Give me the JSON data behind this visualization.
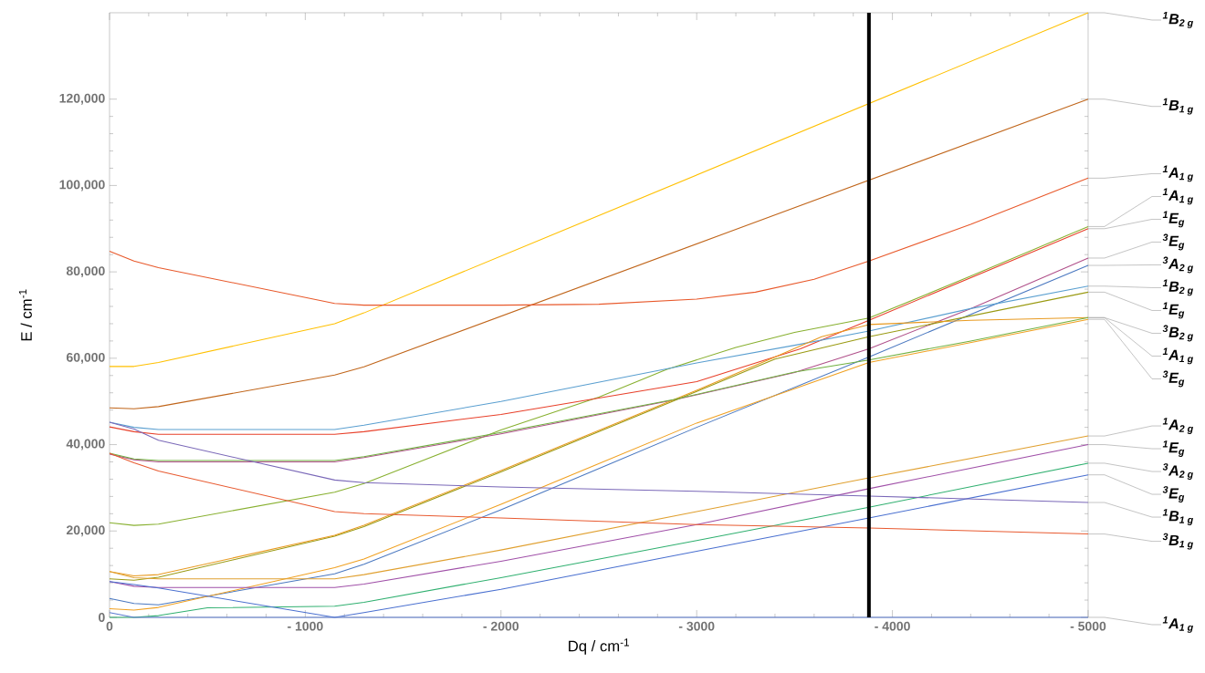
{
  "chart_data": {
    "type": "line",
    "xlabel": "Dq / cm$^{-1}$",
    "ylabel": "E / cm$^{-1}$",
    "xlim": [
      0,
      -5000
    ],
    "ylim": [
      0,
      140000
    ],
    "xticks": [
      0,
      {
        "value": -1000,
        "label": "- 1000"
      },
      {
        "value": -2000,
        "label": "- 2000"
      },
      {
        "value": -3000,
        "label": "- 3000"
      },
      {
        "value": -4000,
        "label": "- 4000"
      },
      {
        "value": -5000,
        "label": "- 5000"
      }
    ],
    "yticks": [
      0,
      {
        "value": 20000,
        "label": "20,000"
      },
      {
        "value": 40000,
        "label": "40,000"
      },
      {
        "value": 60000,
        "label": "60,000"
      },
      {
        "value": 80000,
        "label": "80,000"
      },
      {
        "value": 100000,
        "label": "100,000"
      },
      {
        "value": 120000,
        "label": "120,000"
      }
    ],
    "ref_lines": [
      {
        "axis": "x",
        "value": -3880,
        "color": "#000000"
      }
    ],
    "series": [
      {
        "name": "$^{1}$B$_{2 g}$",
        "color": "#ffc000",
        "x": [
          0,
          -125,
          -250,
          -1150,
          -1300,
          -5000
        ],
        "values": [
          58100,
          58100,
          59000,
          68000,
          70500,
          140000
        ]
      },
      {
        "name": "$^{1}$B$_{1 g}$",
        "color": "#c0651a",
        "x": [
          0,
          -125,
          -250,
          -1150,
          -1300,
          -5000
        ],
        "values": [
          48500,
          48300,
          48800,
          56100,
          58000,
          120000
        ]
      },
      {
        "name": "$^{1}$A$_{1 g}$",
        "color": "#e8582a",
        "x": [
          0,
          -125,
          -250,
          -1150,
          -1300,
          -2000,
          -2500,
          -3000,
          -3300,
          -3600,
          -3880,
          -4400,
          -5000
        ],
        "values": [
          84800,
          82500,
          81000,
          72700,
          72300,
          72300,
          72500,
          73700,
          75300,
          78300,
          82500,
          91000,
          101700
        ]
      },
      {
        "name": "$^{1}$A$_{1 g}$",
        "color": "#88b030",
        "x": [
          0,
          -125,
          -250,
          -1150,
          -1300,
          -2000,
          -2500,
          -2845,
          -3200,
          -3500,
          -3880,
          -4400,
          -5000
        ],
        "values": [
          21900,
          21300,
          21600,
          29000,
          31000,
          43400,
          51000,
          57400,
          62500,
          66000,
          69300,
          79000,
          90500
        ]
      },
      {
        "name": "$^{1}$E$_{g}$",
        "color": "#e8402a",
        "x": [
          0,
          -125,
          -250,
          -1150,
          -1300,
          -2000,
          -3000,
          -3530,
          -3880,
          -5000
        ],
        "values": [
          44100,
          43000,
          42400,
          42400,
          43000,
          47000,
          54600,
          62200,
          68800,
          90000
        ]
      },
      {
        "name": "$^{3}$E$_{g}$",
        "color": "#b0508a",
        "x": [
          0,
          -125,
          -250,
          -1150,
          -1300,
          -2000,
          -2880,
          -3500,
          -3880,
          -4400,
          -5000
        ],
        "values": [
          37800,
          36500,
          36000,
          36000,
          37000,
          42500,
          50300,
          56700,
          62200,
          71500,
          83200
        ]
      },
      {
        "name": "$^{3}$A$_{2 g}$",
        "color": "#4a78c0",
        "x": [
          0,
          -125,
          -250,
          -1150,
          -1300,
          -2000,
          -3000,
          -3880,
          -5000
        ],
        "values": [
          4400,
          3200,
          2900,
          10100,
          12300,
          24900,
          44000,
          60300,
          81500
        ]
      },
      {
        "name": "$^{1}$B$_{2 g}$",
        "color": "#5a9fd0",
        "x": [
          0,
          -125,
          -250,
          -1150,
          -1300,
          -2000,
          -3000,
          -3500,
          -3880,
          -4400,
          -5000
        ],
        "values": [
          45200,
          44000,
          43500,
          43500,
          44500,
          50000,
          58900,
          63000,
          66300,
          71500,
          76700
        ]
      },
      {
        "name": "$^{1}$E$_{g}$",
        "color": "#9a9a12",
        "x": [
          0,
          -125,
          -250,
          -1150,
          -1300,
          -2000,
          -3000,
          -3400,
          -3880,
          -5000
        ],
        "values": [
          8900,
          8600,
          9300,
          18800,
          21000,
          33700,
          52300,
          59800,
          65000,
          75300
        ]
      },
      {
        "name": "$^{3}$B$_{2 g}$",
        "color": "#e89a20",
        "x": [
          0,
          -125,
          -250,
          -1150,
          -1300,
          -2000,
          -3000,
          -3400,
          -3638,
          -3880,
          -4400,
          -5000
        ],
        "values": [
          10600,
          9600,
          9900,
          19000,
          21300,
          34000,
          52600,
          60300,
          65000,
          67800,
          68800,
          69400
        ]
      },
      {
        "name": "$^{1}$A$_{1 g}$",
        "color": "#70b040",
        "x": [
          0,
          -125,
          -250,
          -1150,
          -1300,
          -2000,
          -2880,
          -3500,
          -3880,
          -4400,
          -5000
        ],
        "values": [
          38000,
          36700,
          36300,
          36300,
          37200,
          42800,
          50400,
          56800,
          59600,
          64000,
          69400
        ]
      },
      {
        "name": "$^{3}$E$_{g}$",
        "color": "#f0a020",
        "x": [
          0,
          -125,
          -250,
          -1150,
          -1300,
          -2000,
          -3000,
          -3880,
          -5000
        ],
        "values": [
          2000,
          1700,
          2300,
          11500,
          13500,
          26200,
          45000,
          59000,
          69000
        ]
      },
      {
        "name": "$^{1}$A$_{2 g}$",
        "color": "#e0a030",
        "x": [
          0,
          -125,
          -250,
          -1150,
          -1300,
          -2000,
          -3000,
          -3880,
          -5000
        ],
        "values": [
          10600,
          9200,
          8900,
          8900,
          9900,
          15600,
          24500,
          32300,
          42000
        ]
      },
      {
        "name": "$^{1}$E$_{g}$",
        "color": "#a050a8",
        "x": [
          0,
          -125,
          -250,
          -1150,
          -1300,
          -2000,
          -3000,
          -3880,
          -5000
        ],
        "values": [
          8300,
          7200,
          6900,
          6900,
          7700,
          13000,
          21500,
          29800,
          40000
        ]
      },
      {
        "name": "$^{3}$A$_{2 g}$",
        "color": "#30b070",
        "x": [
          0,
          -125,
          -250,
          -500,
          -1150,
          -1300,
          -2000,
          -3000,
          -3880,
          -5000
        ],
        "values": [
          0,
          0,
          400,
          2200,
          2600,
          3500,
          9200,
          17800,
          25500,
          35700
        ]
      },
      {
        "name": "$^{3}$E$_{g}$",
        "color": "#4a70d0",
        "x": [
          0,
          -125,
          -250,
          -1150,
          -1300,
          -2000,
          -3000,
          -3880,
          -5000
        ],
        "values": [
          8300,
          7600,
          6800,
          0,
          1100,
          6500,
          15300,
          23000,
          33000
        ]
      },
      {
        "name": "$^{1}$B$_{1 g}$",
        "color": "#7a68b8",
        "x": [
          0,
          -125,
          -250,
          -1150,
          -1300,
          -2000,
          -3000,
          -3880,
          -5000
        ],
        "values": [
          45200,
          43600,
          41000,
          31800,
          31200,
          30200,
          29200,
          28100,
          26600
        ]
      },
      {
        "name": "$^{3}$B$_{1 g}$",
        "color": "#e85a30",
        "x": [
          0,
          -125,
          -250,
          -1150,
          -1300,
          -2000,
          -3000,
          -3880,
          -5000
        ],
        "values": [
          38000,
          35800,
          33900,
          24500,
          24000,
          23000,
          21500,
          20700,
          19300
        ]
      },
      {
        "name": "$^{1}$A$_{1 g}$",
        "color": "#5a7ad0",
        "x": [
          0,
          -125,
          -5000
        ],
        "values": [
          1100,
          0,
          0
        ]
      }
    ]
  }
}
